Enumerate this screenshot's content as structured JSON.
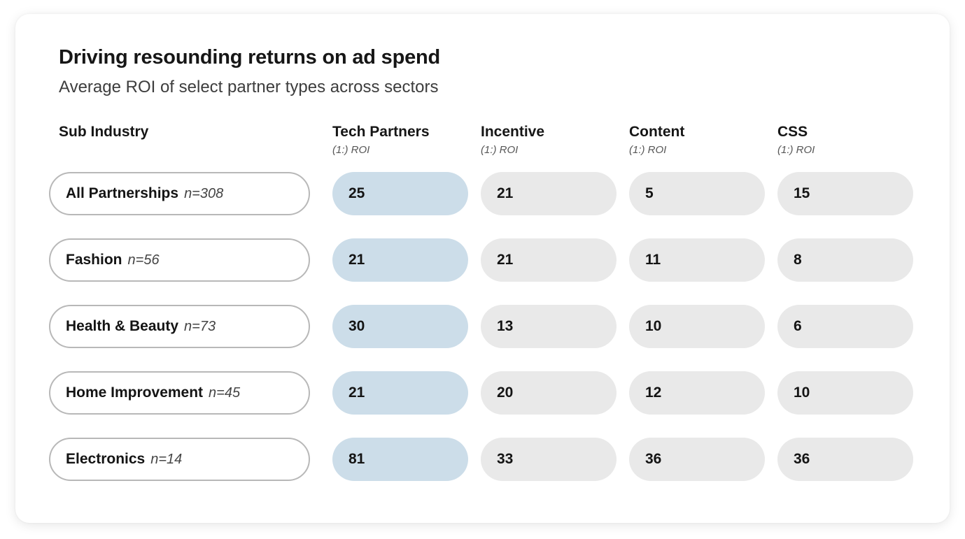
{
  "card": {
    "title": "Driving resounding returns on ad spend",
    "subtitle": "Average ROI of select partner types across sectors"
  },
  "table": {
    "row_header": "Sub Industry",
    "columns": [
      {
        "label": "Tech Partners",
        "sublabel": "(1:) ROI",
        "highlighted": true
      },
      {
        "label": "Incentive",
        "sublabel": "(1:) ROI",
        "highlighted": false
      },
      {
        "label": "Content",
        "sublabel": "(1:) ROI",
        "highlighted": false
      },
      {
        "label": "CSS",
        "sublabel": "(1:) ROI",
        "highlighted": false
      }
    ],
    "rows": [
      {
        "label": "All Partnerships",
        "n": "n=308",
        "values": [
          25,
          21,
          5,
          15
        ]
      },
      {
        "label": "Fashion",
        "n": "n=56",
        "values": [
          21,
          21,
          11,
          8
        ]
      },
      {
        "label": "Health & Beauty",
        "n": "n=73",
        "values": [
          30,
          13,
          10,
          6
        ]
      },
      {
        "label": "Home Improvement",
        "n": "n=45",
        "values": [
          21,
          20,
          12,
          10
        ]
      },
      {
        "label": "Electronics",
        "n": "n=14",
        "values": [
          81,
          33,
          36,
          36
        ]
      }
    ]
  },
  "colors": {
    "highlight_pill": "#ccdde9",
    "default_pill": "#e9e9e9",
    "row_pill_border": "#b8b8b8",
    "card_background": "#ffffff",
    "title_text": "#161616",
    "subtitle_text": "#3d3d3d"
  },
  "chart_data": {
    "type": "table",
    "title": "Driving resounding returns on ad spend",
    "subtitle": "Average ROI of select partner types across sectors",
    "row_label_header": "Sub Industry",
    "columns": [
      "Tech Partners (1:) ROI",
      "Incentive (1:) ROI",
      "Content (1:) ROI",
      "CSS (1:) ROI"
    ],
    "highlighted_column": "Tech Partners",
    "rows": [
      {
        "sub_industry": "All Partnerships",
        "n": 308,
        "values": [
          25,
          21,
          5,
          15
        ]
      },
      {
        "sub_industry": "Fashion",
        "n": 56,
        "values": [
          21,
          21,
          11,
          8
        ]
      },
      {
        "sub_industry": "Health & Beauty",
        "n": 73,
        "values": [
          30,
          13,
          10,
          6
        ]
      },
      {
        "sub_industry": "Home Improvement",
        "n": 45,
        "values": [
          21,
          20,
          12,
          10
        ]
      },
      {
        "sub_industry": "Electronics",
        "n": 14,
        "values": [
          81,
          33,
          36,
          36
        ]
      }
    ]
  }
}
